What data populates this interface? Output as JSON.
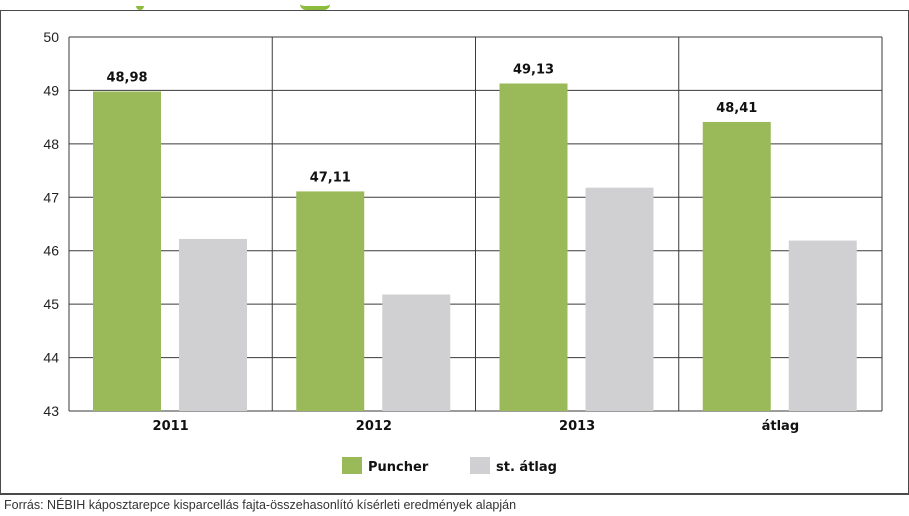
{
  "chart_data": {
    "type": "bar",
    "categories": [
      "2011",
      "2012",
      "2013",
      "átlag"
    ],
    "series": [
      {
        "name": "Puncher",
        "values": [
          48.98,
          47.11,
          49.13,
          48.41
        ],
        "color": "#9aba59"
      },
      {
        "name": "st. átlag",
        "values": [
          46.22,
          45.18,
          47.18,
          46.19
        ],
        "color": "#d0d0d2"
      }
    ],
    "data_labels": [
      "48,98",
      "47,11",
      "49,13",
      "48,41"
    ],
    "ylim": [
      43,
      50
    ],
    "yticks": [
      "43",
      "44",
      "45",
      "46",
      "47",
      "48",
      "49",
      "50"
    ],
    "grid": true,
    "legend_position": "bottom"
  },
  "source_note": "Forrás: NÉBIH káposztarepce kisparcellás fajta-összehasonlító kísérleti eredmények alapján"
}
